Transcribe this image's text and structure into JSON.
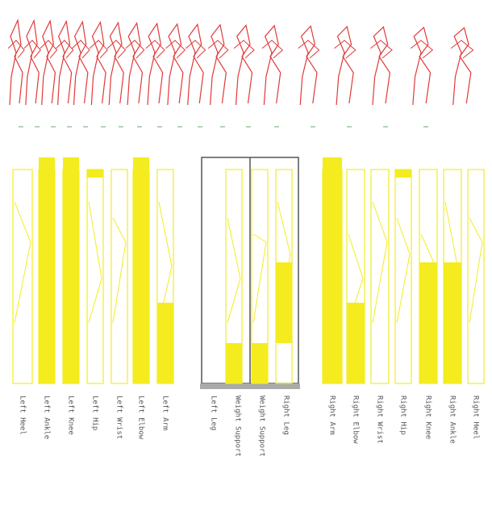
{
  "labels": [
    "Left Heel",
    "Left Ankle",
    "Left Knee",
    "Left Hip",
    "Left Wrist",
    "Left Elbow",
    "Left Arm",
    "Left Leg",
    "Weight Support",
    "Weight Support",
    "Right Leg",
    "Right Arm",
    "Right Elbow",
    "Right Wrist",
    "Right Hip",
    "Right Knee",
    "Right Ankle",
    "Right Heel"
  ]
}
